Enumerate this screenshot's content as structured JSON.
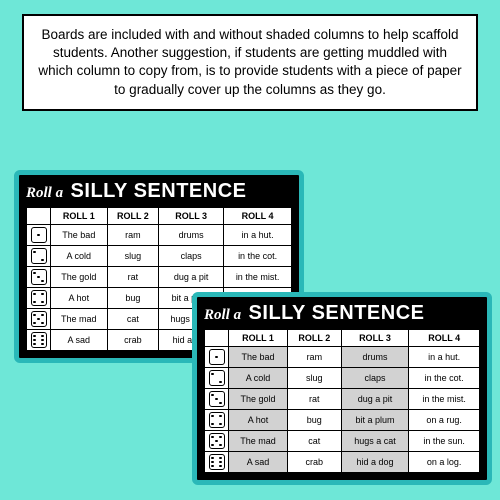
{
  "info_text": "Boards are included with and without shaded columns to help scaffold students. Another suggestion, if students are getting muddled with which column to copy from, is to provide students with a piece of paper to gradually cover up the columns as they go.",
  "title_prefix": "Roll a",
  "title_main": "SILLY SENTENCE",
  "headers": [
    "",
    "ROLL 1",
    "ROLL 2",
    "ROLL 3",
    "ROLL 4"
  ],
  "rows": [
    {
      "d": 1,
      "c": [
        "The bad",
        "ram",
        "drums",
        "in a hut."
      ]
    },
    {
      "d": 2,
      "c": [
        "A cold",
        "slug",
        "claps",
        "in the cot."
      ]
    },
    {
      "d": 3,
      "c": [
        "The gold",
        "rat",
        "dug a pit",
        "in the mist."
      ]
    },
    {
      "d": 4,
      "c": [
        "A hot",
        "bug",
        "bit a plum",
        "on a rug."
      ]
    },
    {
      "d": 5,
      "c": [
        "The mad",
        "cat",
        "hugs a cat",
        "in the sun."
      ]
    },
    {
      "d": 6,
      "c": [
        "A sad",
        "crab",
        "hid a dog",
        "on a log."
      ]
    }
  ],
  "board2_shaded_cols": [
    0,
    2
  ],
  "colors": {
    "page_bg": "#6ee7d7",
    "board_bg": "#000000",
    "board_border": "#2ab8b8",
    "cell_bg": "#ffffff",
    "shaded_bg": "#d2d2d2",
    "text": "#000000",
    "title_text": "#ffffff"
  }
}
